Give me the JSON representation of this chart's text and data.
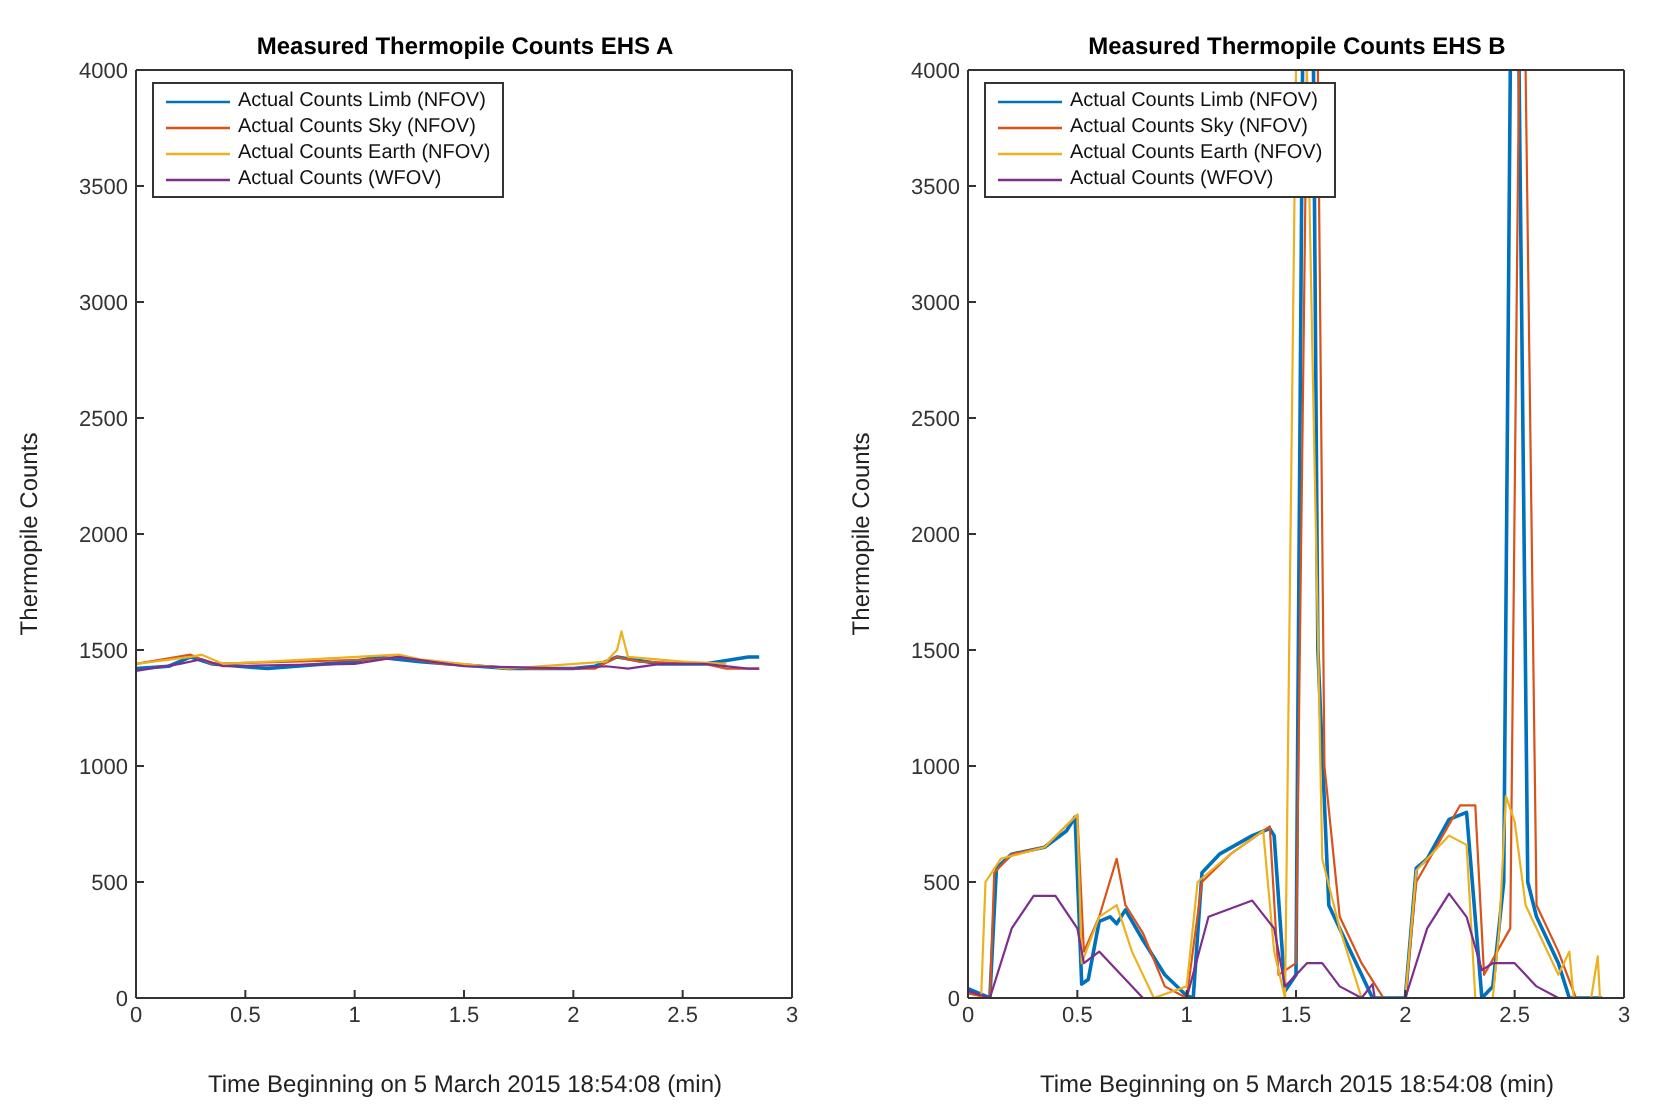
{
  "chart_data": [
    {
      "type": "line",
      "title": "Measured Thermopile Counts EHS A",
      "xlabel": "Time Beginning on 5 March 2015 18:54:08 (min)",
      "ylabel": "Thermopile Counts",
      "xlim": [
        0,
        3
      ],
      "xticks": [
        0,
        0.5,
        1,
        1.5,
        2,
        2.5,
        3
      ],
      "ylim": [
        0,
        4000
      ],
      "yticks": [
        0,
        500,
        1000,
        1500,
        2000,
        2500,
        3000,
        3500,
        4000
      ],
      "grid": false,
      "legend": "top left",
      "series": [
        {
          "name": "Actual Counts Limb (NFOV)",
          "color": "#0072bd",
          "x": [
            0,
            0.15,
            0.25,
            0.35,
            0.6,
            1.0,
            1.1,
            1.3,
            1.7,
            2.0,
            2.1,
            2.2,
            2.4,
            2.6,
            2.8,
            2.85
          ],
          "values": [
            1420,
            1430,
            1470,
            1440,
            1420,
            1450,
            1470,
            1450,
            1420,
            1420,
            1430,
            1470,
            1440,
            1440,
            1470,
            1470
          ]
        },
        {
          "name": "Actual Counts Sky (NFOV)",
          "color": "#d95319",
          "x": [
            0,
            0.25,
            0.35,
            1.1,
            1.2,
            1.4,
            1.8,
            2.1,
            2.2,
            2.3,
            2.6,
            2.7,
            2.85
          ],
          "values": [
            1440,
            1480,
            1440,
            1460,
            1470,
            1440,
            1420,
            1420,
            1470,
            1450,
            1440,
            1420,
            1420
          ]
        },
        {
          "name": "Actual Counts Earth (NFOV)",
          "color": "#edb120",
          "x": [
            0,
            0.25,
            0.3,
            0.4,
            1.2,
            1.3,
            1.7,
            2.15,
            2.2,
            2.22,
            2.25,
            2.5,
            2.7
          ],
          "values": [
            1440,
            1470,
            1480,
            1440,
            1480,
            1460,
            1420,
            1450,
            1500,
            1580,
            1470,
            1450,
            1440
          ]
        },
        {
          "name": "Actual Counts (WFOV)",
          "color": "#7e2f8e",
          "x": [
            0,
            0.2,
            0.3,
            0.4,
            1.0,
            1.2,
            1.5,
            2.0,
            2.15,
            2.25,
            2.4,
            2.6,
            2.8,
            2.85
          ],
          "values": [
            1410,
            1440,
            1460,
            1430,
            1440,
            1470,
            1430,
            1420,
            1430,
            1420,
            1440,
            1440,
            1420,
            1420
          ]
        }
      ]
    },
    {
      "type": "line",
      "title": "Measured Thermopile Counts EHS B",
      "xlabel": "Time Beginning on 5 March 2015 18:54:08 (min)",
      "ylabel": "Thermopile Counts",
      "xlim": [
        0,
        3
      ],
      "xticks": [
        0,
        0.5,
        1,
        1.5,
        2,
        2.5,
        3
      ],
      "ylim": [
        0,
        4000
      ],
      "yticks": [
        0,
        500,
        1000,
        1500,
        2000,
        2500,
        3000,
        3500,
        4000
      ],
      "grid": false,
      "legend": "top left",
      "series": [
        {
          "name": "Actual Counts Limb (NFOV)",
          "color": "#0072bd",
          "x": [
            0,
            0.1,
            0.13,
            0.2,
            0.35,
            0.45,
            0.49,
            0.52,
            0.55,
            0.6,
            0.65,
            0.68,
            0.72,
            0.8,
            0.9,
            1.0,
            1.03,
            1.07,
            1.15,
            1.3,
            1.38,
            1.4,
            1.45,
            1.5,
            1.53,
            1.55,
            1.58,
            1.6,
            1.65,
            1.7,
            1.8,
            1.85,
            2.0,
            2.05,
            2.1,
            2.2,
            2.28,
            2.35,
            2.4,
            2.45,
            2.48,
            2.5,
            2.52,
            2.56,
            2.6,
            2.7,
            2.75,
            2.9
          ],
          "values": [
            40,
            0,
            560,
            620,
            650,
            720,
            780,
            60,
            80,
            330,
            350,
            320,
            380,
            250,
            100,
            10,
            0,
            540,
            620,
            700,
            730,
            700,
            30,
            100,
            4000,
            null,
            4000,
            1500,
            400,
            300,
            100,
            0,
            0,
            560,
            600,
            770,
            800,
            0,
            50,
            500,
            4000,
            null,
            4000,
            500,
            350,
            150,
            0,
            0
          ]
        },
        {
          "name": "Actual Counts Sky (NFOV)",
          "color": "#d95319",
          "x": [
            0,
            0.1,
            0.12,
            0.2,
            0.35,
            0.5,
            0.53,
            0.6,
            0.68,
            0.72,
            0.8,
            0.9,
            1.0,
            1.07,
            1.2,
            1.38,
            1.42,
            1.5,
            1.55,
            1.57,
            1.6,
            1.63,
            1.7,
            1.8,
            1.9,
            2.0,
            2.05,
            2.25,
            2.32,
            2.36,
            2.48,
            2.52,
            2.53,
            2.55,
            2.6,
            2.7,
            2.78,
            2.9
          ],
          "values": [
            20,
            0,
            540,
            620,
            650,
            790,
            200,
            350,
            600,
            400,
            280,
            50,
            0,
            500,
            620,
            740,
            100,
            150,
            4000,
            null,
            4000,
            1000,
            350,
            150,
            0,
            0,
            500,
            830,
            830,
            100,
            300,
            4000,
            null,
            4000,
            400,
            200,
            0,
            0
          ]
        },
        {
          "name": "Actual Counts Earth (NFOV)",
          "color": "#edb120",
          "x": [
            0,
            0.06,
            0.08,
            0.15,
            0.35,
            0.5,
            0.52,
            0.6,
            0.68,
            0.75,
            0.85,
            1.0,
            1.05,
            1.2,
            1.35,
            1.4,
            1.45,
            1.5,
            1.52,
            1.55,
            1.62,
            1.7,
            1.8,
            2.0,
            2.05,
            2.2,
            2.28,
            2.32,
            2.4,
            2.43,
            2.46,
            2.5,
            2.55,
            2.7,
            2.75,
            2.77,
            2.85,
            2.88,
            2.89
          ],
          "values": [
            0,
            0,
            500,
            600,
            650,
            790,
            150,
            350,
            400,
            200,
            0,
            50,
            500,
            620,
            720,
            200,
            0,
            4000,
            null,
            4000,
            600,
            300,
            0,
            0,
            550,
            700,
            660,
            0,
            0,
            300,
            870,
            760,
            400,
            100,
            200,
            0,
            0,
            180,
            0
          ]
        },
        {
          "name": "Actual Counts (WFOV)",
          "color": "#7e2f8e",
          "x": [
            0,
            0.1,
            0.2,
            0.3,
            0.4,
            0.5,
            0.53,
            0.6,
            0.7,
            0.8,
            1.0,
            1.1,
            1.3,
            1.4,
            1.45,
            1.55,
            1.62,
            1.7,
            1.8,
            1.85,
            1.86,
            2.0,
            2.1,
            2.2,
            2.28,
            2.35,
            2.4,
            2.5,
            2.6,
            2.7,
            2.9
          ],
          "values": [
            30,
            0,
            300,
            440,
            440,
            300,
            150,
            200,
            100,
            0,
            0,
            350,
            420,
            300,
            50,
            150,
            150,
            50,
            0,
            60,
            0,
            0,
            300,
            450,
            350,
            120,
            150,
            150,
            50,
            0,
            0
          ]
        }
      ]
    }
  ]
}
